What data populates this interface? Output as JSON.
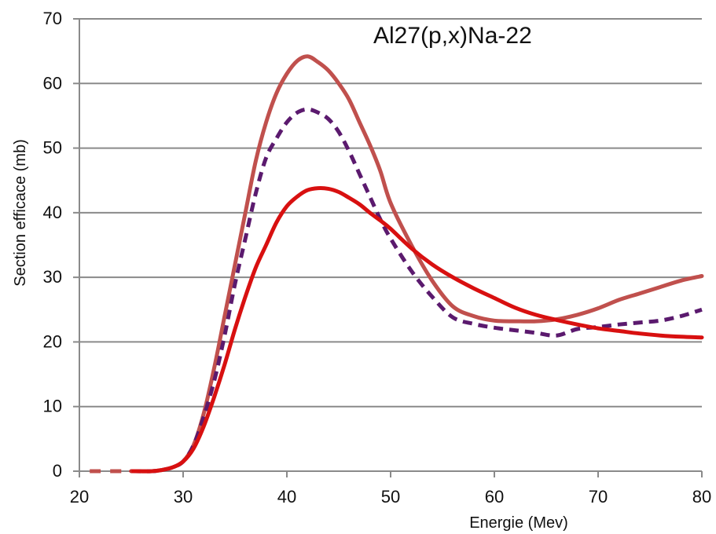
{
  "chart_data": {
    "type": "line",
    "title": "Al27(p,x)Na-22",
    "xlabel": "Energie (Mev)",
    "ylabel": "Section efficace (mb)",
    "xlim": [
      20,
      80
    ],
    "ylim": [
      0,
      70
    ],
    "xticks": [
      20,
      30,
      40,
      50,
      60,
      70,
      80
    ],
    "yticks": [
      0,
      10,
      20,
      30,
      40,
      50,
      60,
      70
    ],
    "grid": "horizontal",
    "series": [
      {
        "color": "#c0504d",
        "style": "solid",
        "x": [
          25,
          27,
          28,
          29,
          30,
          31,
          32,
          33,
          34,
          35,
          36,
          37,
          38,
          39,
          40,
          41,
          42,
          43,
          44,
          45,
          46,
          47,
          48,
          49,
          50,
          52,
          54,
          56,
          58,
          60,
          62,
          64,
          66,
          68,
          70,
          72,
          74,
          76,
          78,
          80
        ],
        "y": [
          0,
          0,
          0.2,
          0.6,
          1.5,
          4,
          9,
          16,
          24,
          32,
          40,
          48,
          54,
          58.5,
          61.5,
          63.5,
          64.2,
          63.3,
          62,
          60,
          57.5,
          54,
          50.5,
          46.5,
          41.5,
          35,
          29.5,
          25.5,
          24,
          23.3,
          23.2,
          23.2,
          23.5,
          24.2,
          25.2,
          26.5,
          27.5,
          28.5,
          29.5,
          30.2
        ]
      },
      {
        "color": "#5b1a6e",
        "style": "dashed",
        "x": [
          25,
          27,
          28,
          29,
          30,
          31,
          32,
          33,
          34,
          35,
          36,
          37,
          38,
          39,
          40,
          41,
          42,
          43,
          44,
          45,
          46,
          47,
          48,
          49,
          50,
          52,
          54,
          56,
          58,
          60,
          62,
          64,
          66,
          68,
          70,
          72,
          74,
          76,
          78,
          80
        ],
        "y": [
          0,
          0,
          0.2,
          0.6,
          1.5,
          4,
          8.5,
          14,
          21,
          29,
          36,
          43,
          48.5,
          51.5,
          54,
          55.5,
          56,
          55.5,
          54.5,
          52.5,
          49.5,
          46,
          42.5,
          39,
          36,
          31,
          27,
          23.8,
          22.8,
          22.2,
          21.8,
          21.4,
          21,
          22,
          22.3,
          22.7,
          23,
          23.3,
          24,
          25
        ]
      },
      {
        "color": "#d81010",
        "style": "solid",
        "x": [
          25,
          27,
          28,
          29,
          30,
          31,
          32,
          33,
          34,
          35,
          36,
          37,
          38,
          39,
          40,
          41,
          42,
          43,
          44,
          45,
          46,
          47,
          48,
          49,
          50,
          52,
          54,
          56,
          58,
          60,
          62,
          64,
          66,
          68,
          70,
          72,
          74,
          76,
          78,
          80
        ],
        "y": [
          0,
          0,
          0.2,
          0.6,
          1.5,
          3.5,
          7,
          11.5,
          16.5,
          22,
          27,
          31.5,
          35,
          38.5,
          41,
          42.5,
          43.5,
          43.8,
          43.7,
          43.2,
          42.3,
          41.3,
          40,
          38.8,
          37.5,
          34.5,
          32,
          30,
          28.3,
          26.8,
          25.3,
          24.2,
          23.4,
          22.7,
          22.1,
          21.7,
          21.3,
          21,
          20.8,
          20.7
        ]
      },
      {
        "color": "#c0504d",
        "style": "dashed",
        "x": [
          21,
          25
        ],
        "y": [
          0,
          0
        ]
      }
    ]
  }
}
